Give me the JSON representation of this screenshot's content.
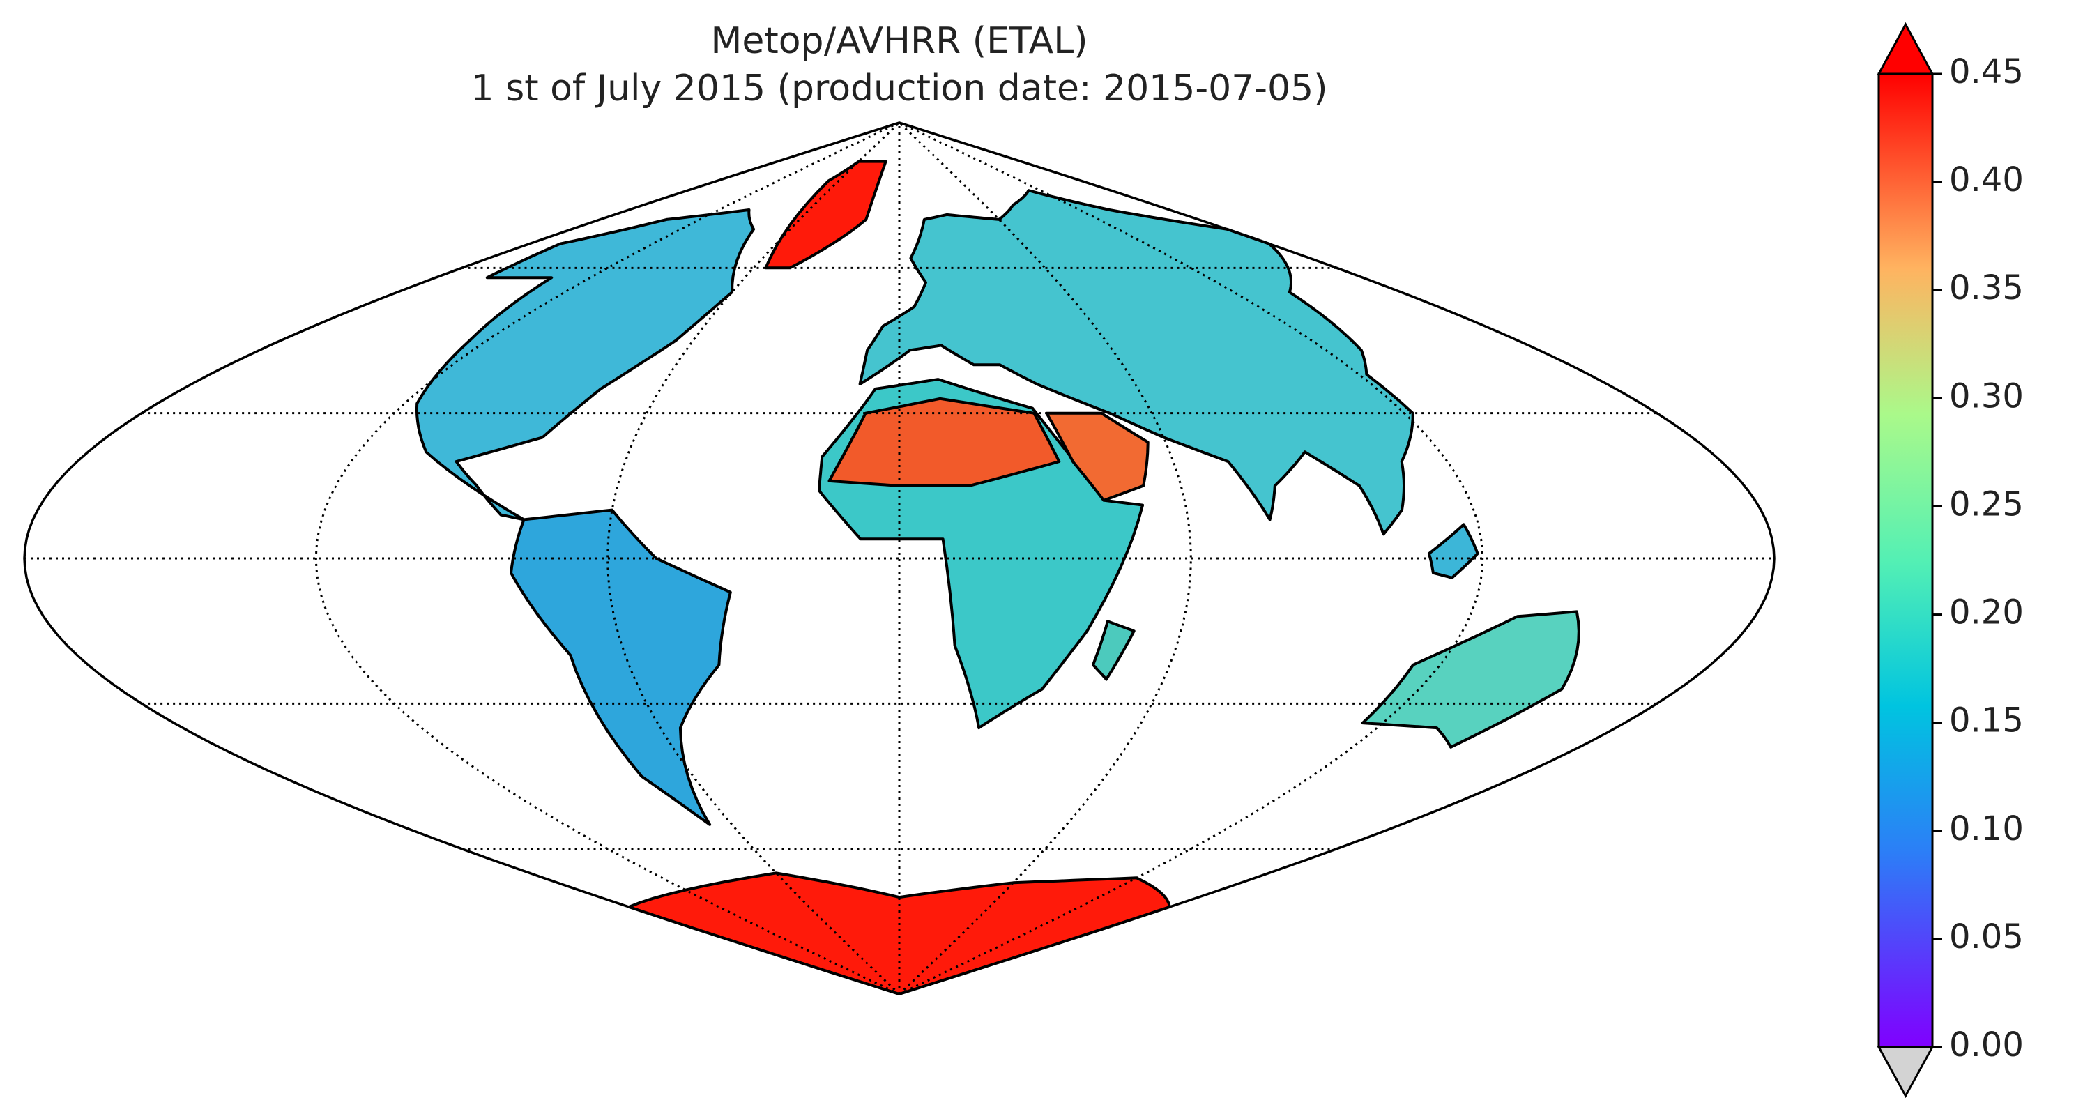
{
  "map": {
    "title": "Metop/AVHRR (ETAL)",
    "subtitle": "1 st of July 2015 (production date: 2015-07-05)",
    "colorbar": {
      "lim": [
        0,
        0.45
      ],
      "ticks": [
        {
          "value": 0,
          "label": "0.00"
        },
        0.05,
        {
          "value": 0.1,
          "label": "0.10"
        },
        0.15,
        {
          "value": 0.2,
          "label": "0.20"
        },
        0.25,
        {
          "value": 0.3,
          "label": "0.30"
        },
        0.35,
        {
          "value": 0.4,
          "label": "0.40"
        },
        0.45
      ],
      "extend_max_color": "#ff0000",
      "extend_min_color": "#d3d3d3"
    }
  }
}
